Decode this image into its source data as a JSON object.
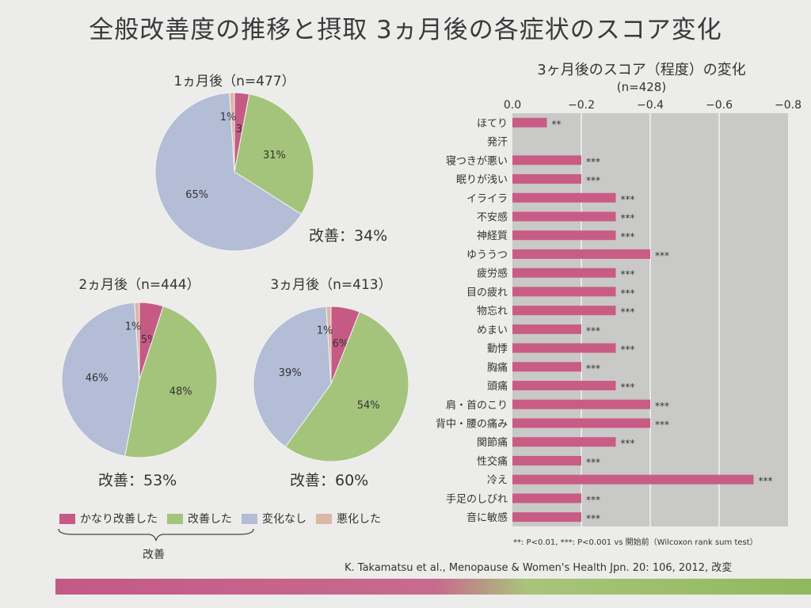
{
  "title": "全般改善度の推移と摂取 3ヵ月後の各症状のスコア変化",
  "colors": {
    "much_improved": "#c55b85",
    "improved": "#a4c47c",
    "no_change": "#b4bdd6",
    "worsened": "#dbb7a8",
    "bar": "#c95c85",
    "plot_bg": "#c9c9c7"
  },
  "legend": {
    "items": [
      {
        "label": "かなり改善した",
        "color": "#c55b85"
      },
      {
        "label": "改善した",
        "color": "#a4c47c"
      },
      {
        "label": "変化なし",
        "color": "#b4bdd6"
      },
      {
        "label": "悪化した",
        "color": "#dbb7a8"
      }
    ],
    "brace_label": "改善"
  },
  "footnote": "**: P<0.01, ***: P<0.001 vs 開始前（Wilcoxon rank sum test）",
  "citation": "K. Takamatsu et al., Menopause & Women's Health Jpn. 20: 106, 2012, 改変",
  "chart_data": [
    {
      "type": "pie",
      "title": "1ヵ月後（n=477）",
      "labels": [
        "かなり改善した",
        "改善した",
        "変化なし",
        "悪化した"
      ],
      "values": [
        3,
        31,
        65,
        1
      ],
      "value_labels": [
        "3%",
        "31%",
        "65%",
        "1%"
      ],
      "improvement": "改善：34%"
    },
    {
      "type": "pie",
      "title": "2ヵ月後（n=444）",
      "labels": [
        "かなり改善した",
        "改善した",
        "変化なし",
        "悪化した"
      ],
      "values": [
        5,
        48,
        46,
        1
      ],
      "value_labels": [
        "5%",
        "48%",
        "46%",
        "1%"
      ],
      "improvement": "改善：53%"
    },
    {
      "type": "pie",
      "title": "3ヵ月後（n=413）",
      "labels": [
        "かなり改善した",
        "改善した",
        "変化なし",
        "悪化した"
      ],
      "values": [
        6,
        54,
        39,
        1
      ],
      "value_labels": [
        "6%",
        "54%",
        "39%",
        "1%"
      ],
      "improvement": "改善：60%"
    },
    {
      "type": "bar",
      "orientation": "horizontal",
      "title": "3ヶ月後のスコア（程度）の変化",
      "subtitle": "(n=428)",
      "xlim": [
        0,
        -0.8
      ],
      "xticks": [
        "0.0",
        "−0.2",
        "−0.4",
        "−0.6",
        "−0.8"
      ],
      "grid": true,
      "categories": [
        "ほてり",
        "発汗",
        "寝つきが悪い",
        "眠りが浅い",
        "イライラ",
        "不安感",
        "神経質",
        "ゆううつ",
        "疲労感",
        "目の疲れ",
        "物忘れ",
        "めまい",
        "動悸",
        "胸痛",
        "頭痛",
        "肩・首のこり",
        "背中・腰の痛み",
        "関節痛",
        "性交痛",
        "冷え",
        "手足のしびれ",
        "音に敏感"
      ],
      "values": [
        -0.1,
        0,
        -0.2,
        -0.2,
        -0.3,
        -0.3,
        -0.3,
        -0.4,
        -0.3,
        -0.3,
        -0.3,
        -0.2,
        -0.3,
        -0.2,
        -0.3,
        -0.4,
        -0.4,
        -0.3,
        -0.2,
        -0.7,
        -0.2,
        -0.2
      ],
      "significance": [
        "**",
        "",
        "***",
        "***",
        "***",
        "***",
        "***",
        "***",
        "***",
        "***",
        "***",
        "***",
        "***",
        "***",
        "***",
        "***",
        "***",
        "***",
        "***",
        "***",
        "***",
        "***"
      ]
    }
  ]
}
